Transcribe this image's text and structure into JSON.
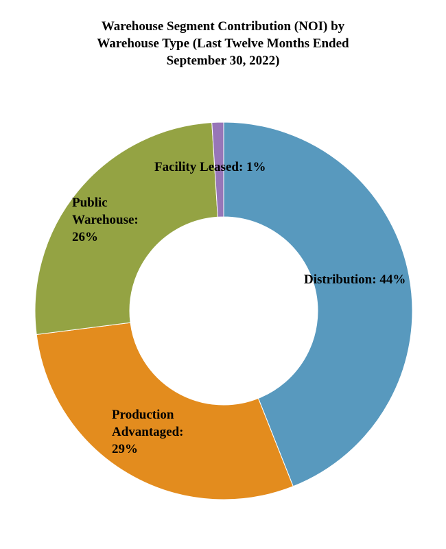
{
  "chart_data": {
    "type": "pie",
    "variant": "donut",
    "title_lines": [
      "Warehouse Segment Contribution (NOI) by",
      "Warehouse Type (Last Twelve Months Ended",
      "September 30, 2022)"
    ],
    "unit": "%",
    "legend": "none",
    "slices": [
      {
        "name": "Distribution",
        "value": 44,
        "label_lines": [
          "Distribution: 44%"
        ],
        "color": "#5899be"
      },
      {
        "name": "Production Advantaged",
        "value": 29,
        "label_lines": [
          "Production",
          "Advantaged:",
          "29%"
        ],
        "color": "#e38c1e"
      },
      {
        "name": "Public Warehouse",
        "value": 26,
        "label_lines": [
          "Public",
          "Warehouse:",
          "26%"
        ],
        "color": "#94a343"
      },
      {
        "name": "Facility Leased",
        "value": 1,
        "label_lines": [
          "Facility Leased: 1%"
        ],
        "color": "#9776b8"
      }
    ]
  }
}
